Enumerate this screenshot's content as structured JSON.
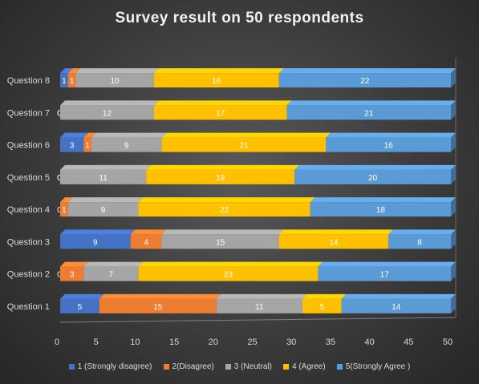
{
  "chart_data": {
    "type": "bar",
    "orientation": "horizontal",
    "stacked": true,
    "title": "Survey result on 50 respondents",
    "categories": [
      "Question 1",
      "Question 2",
      "Question 3",
      "Question 4",
      "Question 5",
      "Question 6",
      "Question 7",
      "Question 8"
    ],
    "series": [
      {
        "name": "1 (Strongly disagree)",
        "color": "#4472c4",
        "values": [
          5,
          0,
          9,
          0,
          0,
          3,
          0,
          1
        ]
      },
      {
        "name": "2(Disagree)",
        "color": "#ed7d31",
        "values": [
          15,
          3,
          4,
          1,
          0,
          1,
          0,
          1
        ]
      },
      {
        "name": "3 (Neutral)",
        "color": "#a5a5a5",
        "values": [
          11,
          7,
          15,
          9,
          11,
          9,
          12,
          10
        ]
      },
      {
        "name": "4  (Agree)",
        "color": "#ffc000",
        "values": [
          5,
          23,
          14,
          22,
          19,
          21,
          17,
          16
        ]
      },
      {
        "name": "5(Strongly Agree )",
        "color": "#5b9bd5",
        "values": [
          14,
          17,
          8,
          18,
          20,
          16,
          21,
          22
        ]
      }
    ],
    "xlim": [
      0,
      50
    ],
    "xticks": [
      0,
      5,
      10,
      15,
      20,
      25,
      30,
      35,
      40,
      45,
      50
    ],
    "legend_position": "bottom",
    "grid": false
  }
}
